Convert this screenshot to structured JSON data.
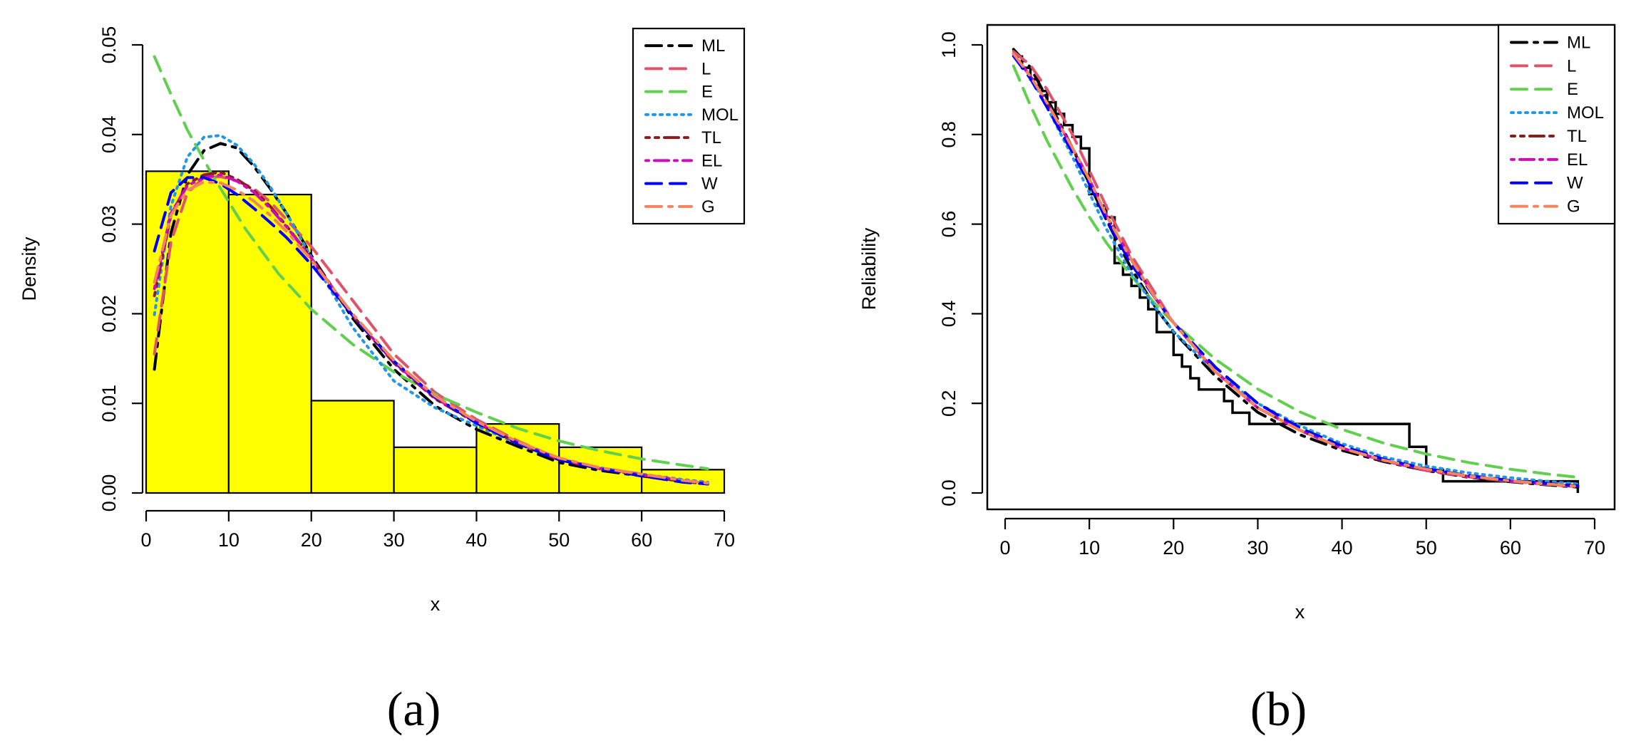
{
  "chart_data": [
    {
      "type": "histogram+line",
      "panel_label": "(a)",
      "xlabel": "x",
      "ylabel": "Density",
      "xlim": [
        0,
        70
      ],
      "ylim": [
        0,
        0.05
      ],
      "xticks": [
        "0",
        "10",
        "20",
        "30",
        "40",
        "50",
        "60",
        "70"
      ],
      "yticks": [
        "0.00",
        "0.01",
        "0.02",
        "0.03",
        "0.04",
        "0.05"
      ],
      "legend_position": "top-right",
      "histogram": {
        "bin_edges": [
          0,
          10,
          20,
          30,
          40,
          50,
          60,
          70
        ],
        "values": [
          0.0359,
          0.0333,
          0.0103,
          0.0051,
          0.0077,
          0.0051,
          0.0026
        ],
        "fill": "#ffff00"
      },
      "series": [
        {
          "name": "ML",
          "color": "#000000",
          "dash": "22 10 5 10",
          "x": [
            1,
            3,
            5,
            7,
            9,
            11,
            13,
            15,
            17,
            20,
            25,
            30,
            35,
            40,
            45,
            50,
            55,
            60,
            65,
            68
          ],
          "y": [
            0.0138,
            0.029,
            0.0355,
            0.0382,
            0.039,
            0.0385,
            0.0365,
            0.034,
            0.0312,
            0.0265,
            0.0195,
            0.0138,
            0.0097,
            0.0071,
            0.0052,
            0.0034,
            0.0025,
            0.0019,
            0.0013,
            0.001
          ]
        },
        {
          "name": "L",
          "color": "#df536b",
          "dash": "22 12",
          "x": [
            1,
            3,
            5,
            7,
            9,
            11,
            13,
            15,
            17,
            20,
            25,
            30,
            35,
            40,
            45,
            50,
            55,
            60,
            65,
            68
          ],
          "y": [
            0.0155,
            0.028,
            0.0335,
            0.0352,
            0.0353,
            0.0348,
            0.034,
            0.0325,
            0.0305,
            0.0275,
            0.0215,
            0.0155,
            0.0112,
            0.0082,
            0.0058,
            0.0038,
            0.0028,
            0.0021,
            0.0014,
            0.001
          ]
        },
        {
          "name": "E",
          "color": "#61d04f",
          "dash": "22 12",
          "x": [
            1,
            3,
            5,
            8,
            12,
            16,
            20,
            25,
            30,
            35,
            40,
            45,
            50,
            55,
            60,
            65,
            68
          ],
          "y": [
            0.0487,
            0.0445,
            0.0405,
            0.0355,
            0.0295,
            0.0245,
            0.0205,
            0.0166,
            0.0135,
            0.011,
            0.009,
            0.0072,
            0.0058,
            0.0047,
            0.0038,
            0.0031,
            0.0027
          ]
        },
        {
          "name": "MOL",
          "color": "#2297e6",
          "dash": "3 7",
          "x": [
            1,
            3,
            5,
            7,
            9,
            11,
            13,
            15,
            17,
            20,
            25,
            30,
            35,
            40,
            45,
            50,
            55,
            60,
            65,
            68
          ],
          "y": [
            0.0199,
            0.032,
            0.0375,
            0.0397,
            0.0399,
            0.0388,
            0.0368,
            0.0342,
            0.0312,
            0.0263,
            0.0185,
            0.0125,
            0.0095,
            0.0075,
            0.0055,
            0.0038,
            0.0028,
            0.0021,
            0.0015,
            0.0012
          ]
        },
        {
          "name": "TL",
          "color": "#8b1c1c",
          "dash": "5 8 5 8 20 8",
          "x": [
            1,
            3,
            5,
            7,
            9,
            11,
            13,
            15,
            17,
            20,
            25,
            30,
            35,
            40,
            45,
            50,
            55,
            60,
            65,
            68
          ],
          "y": [
            0.022,
            0.031,
            0.0345,
            0.0355,
            0.0358,
            0.035,
            0.0338,
            0.032,
            0.0298,
            0.0262,
            0.0198,
            0.0145,
            0.0105,
            0.0078,
            0.0056,
            0.0037,
            0.0027,
            0.002,
            0.0013,
            0.001
          ]
        },
        {
          "name": "EL",
          "color": "#cd0bbc",
          "dash": "4 8 20 8",
          "x": [
            1,
            3,
            5,
            7,
            9,
            11,
            13,
            15,
            17,
            20,
            25,
            30,
            35,
            40,
            45,
            50,
            55,
            60,
            65,
            68
          ],
          "y": [
            0.0228,
            0.0312,
            0.0343,
            0.0352,
            0.0355,
            0.0348,
            0.0336,
            0.0318,
            0.0297,
            0.0262,
            0.0198,
            0.0146,
            0.0106,
            0.0079,
            0.0056,
            0.0038,
            0.0027,
            0.002,
            0.0014,
            0.0011
          ]
        },
        {
          "name": "W",
          "color": "#0000ff",
          "dash": "22 12",
          "x": [
            1,
            3,
            5,
            7,
            9,
            11,
            13,
            15,
            17,
            20,
            25,
            30,
            35,
            40,
            45,
            50,
            55,
            60,
            65,
            68
          ],
          "y": [
            0.027,
            0.0335,
            0.0352,
            0.0352,
            0.0345,
            0.0333,
            0.0318,
            0.0302,
            0.0285,
            0.0255,
            0.0198,
            0.0147,
            0.0107,
            0.0078,
            0.0055,
            0.0037,
            0.0027,
            0.0019,
            0.0012,
            0.001
          ]
        },
        {
          "name": "G",
          "color": "#f5845c",
          "dash": "22 10 5 10",
          "x": [
            1,
            3,
            5,
            7,
            9,
            11,
            13,
            15,
            17,
            20,
            25,
            30,
            35,
            40,
            45,
            50,
            55,
            60,
            65,
            68
          ],
          "y": [
            0.0235,
            0.031,
            0.0338,
            0.0347,
            0.0346,
            0.0338,
            0.0326,
            0.031,
            0.0292,
            0.026,
            0.02,
            0.0148,
            0.0108,
            0.008,
            0.0057,
            0.0039,
            0.0028,
            0.0021,
            0.0014,
            0.0011
          ]
        }
      ]
    },
    {
      "type": "line",
      "panel_label": "(b)",
      "xlabel": "x",
      "ylabel": "Reliability",
      "xlim": [
        0,
        70
      ],
      "ylim": [
        0,
        1
      ],
      "xticks": [
        "0",
        "10",
        "20",
        "30",
        "40",
        "50",
        "60",
        "70"
      ],
      "yticks": [
        "0.0",
        "0.2",
        "0.4",
        "0.6",
        "0.8",
        "1.0"
      ],
      "legend_position": "top-right",
      "empirical_step": {
        "x": [
          1,
          2,
          3,
          4,
          5,
          6,
          7,
          8,
          9,
          10,
          11,
          12,
          13,
          14,
          15,
          16,
          17,
          18,
          20,
          21,
          22,
          23,
          26,
          27,
          29,
          33,
          40,
          48,
          50,
          52,
          55,
          68
        ],
        "y": [
          0.974,
          0.949,
          0.923,
          0.897,
          0.872,
          0.846,
          0.821,
          0.795,
          0.769,
          0.667,
          0.641,
          0.615,
          0.513,
          0.487,
          0.462,
          0.436,
          0.41,
          0.359,
          0.308,
          0.282,
          0.256,
          0.231,
          0.205,
          0.179,
          0.154,
          0.154,
          0.154,
          0.103,
          0.051,
          0.026,
          0.026,
          0.0
        ]
      },
      "series": [
        {
          "name": "ML",
          "color": "#000000",
          "dash": "22 10 5 10",
          "x": [
            1,
            3,
            5,
            8,
            10,
            12,
            15,
            18,
            20,
            25,
            30,
            35,
            40,
            45,
            50,
            55,
            60,
            65,
            68
          ],
          "y": [
            0.99,
            0.95,
            0.88,
            0.77,
            0.69,
            0.61,
            0.5,
            0.41,
            0.36,
            0.26,
            0.18,
            0.13,
            0.095,
            0.07,
            0.05,
            0.035,
            0.025,
            0.017,
            0.013
          ]
        },
        {
          "name": "L",
          "color": "#df536b",
          "dash": "22 12",
          "x": [
            1,
            3,
            5,
            8,
            10,
            12,
            15,
            18,
            20,
            25,
            30,
            35,
            40,
            45,
            50,
            55,
            60,
            65,
            68
          ],
          "y": [
            0.985,
            0.955,
            0.9,
            0.8,
            0.72,
            0.64,
            0.53,
            0.44,
            0.38,
            0.27,
            0.19,
            0.14,
            0.1,
            0.072,
            0.05,
            0.036,
            0.026,
            0.018,
            0.014
          ]
        },
        {
          "name": "E",
          "color": "#61d04f",
          "dash": "22 12",
          "x": [
            1,
            3,
            5,
            8,
            10,
            12,
            15,
            18,
            20,
            25,
            30,
            35,
            40,
            45,
            50,
            55,
            60,
            65,
            68
          ],
          "y": [
            0.953,
            0.865,
            0.785,
            0.679,
            0.616,
            0.559,
            0.484,
            0.418,
            0.38,
            0.298,
            0.232,
            0.181,
            0.142,
            0.111,
            0.087,
            0.068,
            0.053,
            0.041,
            0.035
          ]
        },
        {
          "name": "MOL",
          "color": "#2297e6",
          "dash": "3 7",
          "x": [
            1,
            3,
            5,
            8,
            10,
            12,
            15,
            18,
            20,
            25,
            30,
            35,
            40,
            45,
            50,
            55,
            60,
            65,
            68
          ],
          "y": [
            0.98,
            0.93,
            0.86,
            0.75,
            0.67,
            0.59,
            0.49,
            0.41,
            0.36,
            0.27,
            0.2,
            0.15,
            0.11,
            0.08,
            0.06,
            0.045,
            0.034,
            0.025,
            0.02
          ]
        },
        {
          "name": "TL",
          "color": "#8b1c1c",
          "dash": "5 8 5 8 20 8",
          "x": [
            1,
            3,
            5,
            8,
            10,
            12,
            15,
            18,
            20,
            25,
            30,
            35,
            40,
            45,
            50,
            55,
            60,
            65,
            68
          ],
          "y": [
            0.98,
            0.93,
            0.87,
            0.77,
            0.7,
            0.62,
            0.52,
            0.43,
            0.38,
            0.27,
            0.19,
            0.14,
            0.1,
            0.072,
            0.052,
            0.037,
            0.027,
            0.019,
            0.015
          ]
        },
        {
          "name": "EL",
          "color": "#cd0bbc",
          "dash": "4 8 20 8",
          "x": [
            1,
            3,
            5,
            8,
            10,
            12,
            15,
            18,
            20,
            25,
            30,
            35,
            40,
            45,
            50,
            55,
            60,
            65,
            68
          ],
          "y": [
            0.98,
            0.93,
            0.87,
            0.77,
            0.7,
            0.62,
            0.52,
            0.43,
            0.38,
            0.27,
            0.19,
            0.14,
            0.1,
            0.072,
            0.052,
            0.037,
            0.027,
            0.019,
            0.015
          ]
        },
        {
          "name": "W",
          "color": "#0000ff",
          "dash": "22 12",
          "x": [
            1,
            3,
            5,
            8,
            10,
            12,
            15,
            18,
            20,
            25,
            30,
            35,
            40,
            45,
            50,
            55,
            60,
            65,
            68
          ],
          "y": [
            0.975,
            0.925,
            0.86,
            0.76,
            0.69,
            0.61,
            0.51,
            0.43,
            0.38,
            0.28,
            0.2,
            0.145,
            0.105,
            0.075,
            0.054,
            0.039,
            0.028,
            0.02,
            0.016
          ]
        },
        {
          "name": "G",
          "color": "#f5845c",
          "dash": "22 10 5 10",
          "x": [
            1,
            3,
            5,
            8,
            10,
            12,
            15,
            18,
            20,
            25,
            30,
            35,
            40,
            45,
            50,
            55,
            60,
            65,
            68
          ],
          "y": [
            0.98,
            0.93,
            0.87,
            0.77,
            0.7,
            0.62,
            0.52,
            0.43,
            0.38,
            0.27,
            0.19,
            0.14,
            0.1,
            0.073,
            0.053,
            0.038,
            0.027,
            0.019,
            0.015
          ]
        }
      ]
    }
  ]
}
